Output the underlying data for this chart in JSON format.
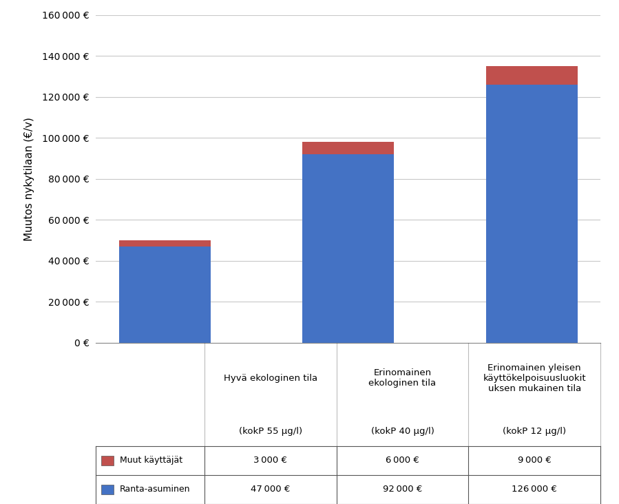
{
  "cat_line1": [
    "Hyvä ekologinen tila",
    "Erinomainen\nekologinen tila",
    "Erinomainen yleisen\nkäyttökelpoisuusluokit\nuksen mukainen tila"
  ],
  "cat_line2": [
    "(kokP 55 μg/l)",
    "(kokP 40 μg/l)",
    "(kokP 12 μg/l)"
  ],
  "ranta_asuminen": [
    47000,
    92000,
    126000
  ],
  "muut_kayttajat": [
    3000,
    6000,
    9000
  ],
  "color_ranta": "#4472C4",
  "color_muut": "#C0504D",
  "ylabel": "Muutos nykytilaan (€/v)",
  "ylim": [
    0,
    160000
  ],
  "yticks": [
    0,
    20000,
    40000,
    60000,
    80000,
    100000,
    120000,
    140000,
    160000
  ],
  "ytick_labels": [
    "0 €",
    "20 000 €",
    "40 000 €",
    "60 000 €",
    "80 000 €",
    "100 000 €",
    "120 000 €",
    "140 000 €",
    "160 000 €"
  ],
  "legend_ranta": "Ranta-asuminen",
  "legend_muut": "Muut käyttäjät",
  "table_ranta": [
    "47 000 €",
    "92 000 €",
    "126 000 €"
  ],
  "table_muut": [
    "3 000 €",
    "6 000 €",
    "9 000 €"
  ],
  "bg_color": "#FFFFFF",
  "grid_color": "#C8C8C8",
  "bar_width": 0.5
}
